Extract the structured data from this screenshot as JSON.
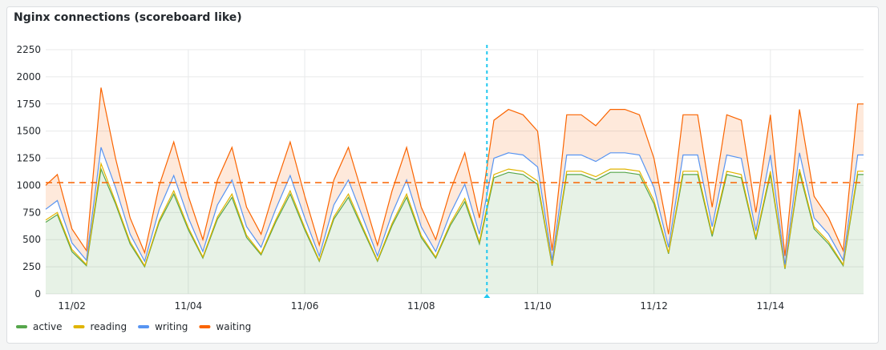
{
  "chart_data": {
    "type": "line",
    "title": "Nginx connections (scoreboard like)",
    "x": [
      1.55,
      1.75,
      2.0,
      2.25,
      2.5,
      2.75,
      3.0,
      3.25,
      3.5,
      3.75,
      4.0,
      4.25,
      4.5,
      4.75,
      5.0,
      5.25,
      5.5,
      5.75,
      6.0,
      6.25,
      6.5,
      6.75,
      7.0,
      7.25,
      7.5,
      7.75,
      8.0,
      8.25,
      8.5,
      8.75,
      9.0,
      9.25,
      9.5,
      9.75,
      10.0,
      10.25,
      10.5,
      10.75,
      11.0,
      11.25,
      11.5,
      11.75,
      12.0,
      12.25,
      12.5,
      12.75,
      13.0,
      13.25,
      13.5,
      13.75,
      14.0,
      14.25,
      14.5,
      14.75,
      15.0,
      15.25,
      15.5,
      15.6
    ],
    "series": [
      {
        "name": "active",
        "color": "#56a64b",
        "values": [
          660,
          730,
          390,
          260,
          1150,
          830,
          460,
          250,
          660,
          920,
          590,
          330,
          690,
          890,
          520,
          360,
          660,
          920,
          590,
          300,
          690,
          890,
          590,
          300,
          630,
          890,
          520,
          330,
          630,
          850,
          460,
          1070,
          1120,
          1100,
          1010,
          260,
          1100,
          1100,
          1050,
          1120,
          1120,
          1100,
          830,
          370,
          1100,
          1100,
          530,
          1100,
          1070,
          500,
          1100,
          230,
          1120,
          600,
          460,
          260,
          1100,
          1100
        ]
      },
      {
        "name": "reading",
        "color": "#e0b400",
        "values": [
          680,
          750,
          410,
          270,
          1200,
          850,
          480,
          260,
          680,
          950,
          610,
          340,
          710,
          920,
          540,
          370,
          680,
          950,
          610,
          310,
          710,
          920,
          610,
          310,
          650,
          920,
          540,
          340,
          650,
          880,
          480,
          1100,
          1150,
          1130,
          1040,
          270,
          1130,
          1130,
          1080,
          1150,
          1150,
          1130,
          860,
          380,
          1130,
          1130,
          550,
          1130,
          1100,
          520,
          1130,
          240,
          1150,
          620,
          480,
          270,
          1130,
          1130
        ]
      },
      {
        "name": "writing",
        "color": "#5794f2",
        "values": [
          780,
          860,
          470,
          310,
          1350,
          980,
          550,
          300,
          780,
          1090,
          700,
          390,
          820,
          1050,
          620,
          430,
          780,
          1090,
          700,
          350,
          820,
          1050,
          700,
          350,
          740,
          1050,
          620,
          390,
          740,
          1010,
          550,
          1250,
          1300,
          1280,
          1170,
          310,
          1280,
          1280,
          1220,
          1300,
          1300,
          1280,
          980,
          430,
          1280,
          1280,
          620,
          1280,
          1250,
          580,
          1280,
          270,
          1300,
          700,
          550,
          310,
          1280,
          1280
        ]
      },
      {
        "name": "waiting",
        "color": "#fa6400",
        "values": [
          1000,
          1100,
          600,
          400,
          1900,
          1250,
          700,
          380,
          1000,
          1400,
          900,
          500,
          1050,
          1350,
          800,
          550,
          1000,
          1400,
          900,
          450,
          1050,
          1350,
          900,
          450,
          950,
          1350,
          800,
          500,
          950,
          1300,
          700,
          1600,
          1700,
          1650,
          1500,
          400,
          1650,
          1650,
          1550,
          1700,
          1700,
          1650,
          1250,
          550,
          1650,
          1650,
          800,
          1650,
          1600,
          750,
          1650,
          350,
          1700,
          900,
          700,
          400,
          1750,
          1750
        ]
      }
    ],
    "xlim": [
      1.55,
      15.6
    ],
    "xticks": [
      {
        "value": 2,
        "label": "11/02"
      },
      {
        "value": 4,
        "label": "11/04"
      },
      {
        "value": 6,
        "label": "11/06"
      },
      {
        "value": 8,
        "label": "11/08"
      },
      {
        "value": 10,
        "label": "11/10"
      },
      {
        "value": 12,
        "label": "11/12"
      },
      {
        "value": 14,
        "label": "11/14"
      }
    ],
    "ylim": [
      0,
      2250
    ],
    "yticks": [
      0,
      250,
      500,
      750,
      1000,
      1250,
      1500,
      1750,
      2000,
      2250
    ],
    "threshold": 1025,
    "annotation_x": 9.13,
    "grid": true
  }
}
